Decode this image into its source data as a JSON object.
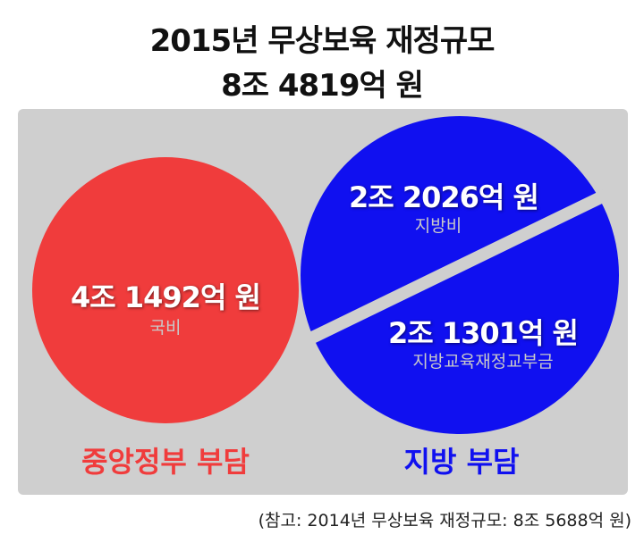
{
  "title_line1": "2015년 무상보육 재정규모",
  "title_line2": "8조 4819억 원",
  "central": {
    "amount": "4조 1492억 원",
    "source": "국비",
    "label": "중앙정부 부담",
    "color": "#f03c3c"
  },
  "local": {
    "label": "지방 부담",
    "color": "#1010f0",
    "parts": [
      {
        "amount": "2조 2026억 원",
        "source": "지방비"
      },
      {
        "amount": "2조 1301억 원",
        "source": "지방교육재정교부금"
      }
    ]
  },
  "note": "(참고: 2014년 무상보육 재정규모: 8조 5688억 원)"
}
